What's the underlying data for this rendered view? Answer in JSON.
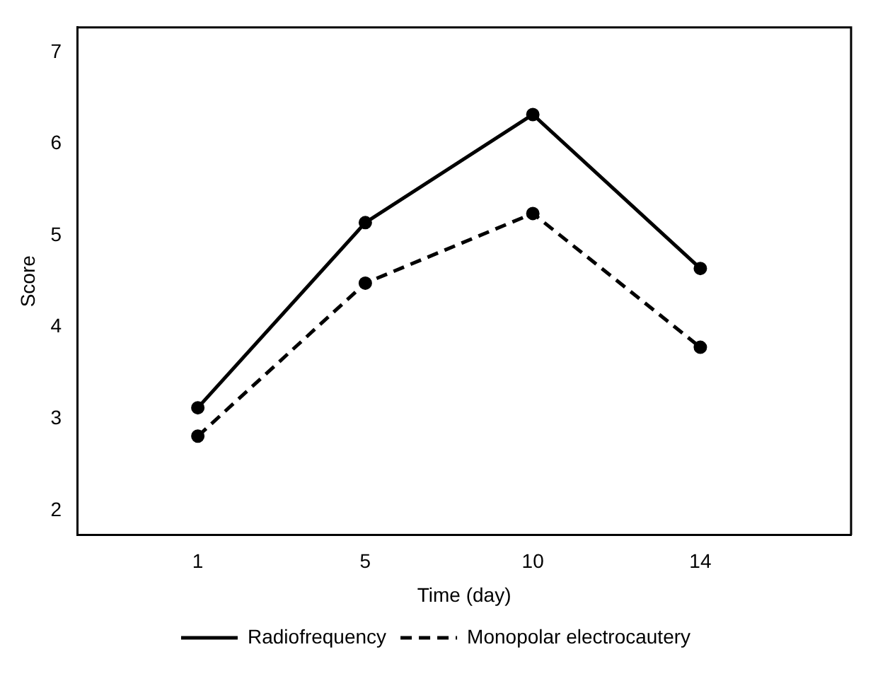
{
  "chart_data": {
    "type": "line",
    "xlabel": "Time (day)",
    "ylabel": "Score",
    "categories": [
      "1",
      "5",
      "10",
      "14"
    ],
    "series": [
      {
        "name": "Radiofrequency",
        "color": "#000000",
        "values": [
          3.12,
          5.14,
          6.32,
          4.64
        ],
        "line_style": "solid"
      },
      {
        "name": "Monopolar electrocautery",
        "color": "#000000",
        "values": [
          2.81,
          4.48,
          5.24,
          3.78
        ],
        "line_style": "dashed"
      }
    ],
    "ylim": [
      1.73,
      7.27
    ],
    "yticks": [
      2,
      3,
      4,
      5,
      6,
      7
    ],
    "grid": false,
    "legend": "bottom",
    "marker": "circle"
  }
}
